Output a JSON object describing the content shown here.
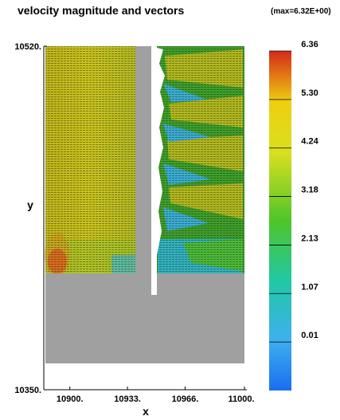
{
  "title": "velocity magnitude and vectors",
  "max_note": "(max=6.32E+00)",
  "chart_data": {
    "type": "heatmap",
    "title": "velocity magnitude and vectors",
    "annotation": "(max=6.32E+00)",
    "xlabel": "x",
    "ylabel": "y",
    "xlim": [
      10886,
      11000
    ],
    "ylim": [
      10350,
      10520
    ],
    "x_ticks": [
      {
        "value": 10900,
        "label": "10900."
      },
      {
        "value": 10933,
        "label": "10933."
      },
      {
        "value": 10966,
        "label": "10966."
      },
      {
        "value": 11000,
        "label": "11000."
      }
    ],
    "y_ticks": [
      {
        "value": 10520,
        "label": "10520."
      },
      {
        "value": 10350,
        "label": "10350."
      }
    ],
    "colorbar": {
      "ticks": [
        "6.36",
        "5.30",
        "4.24",
        "3.18",
        "2.13",
        "1.07",
        "0.01"
      ],
      "min": 0.01,
      "max": 6.36,
      "colors": [
        "#d42a1a",
        "#eecf10",
        "#d8e020",
        "#4fc52a",
        "#20c8a6",
        "#3fb0ef",
        "#1a6ef0"
      ]
    },
    "max_value": 6.32,
    "colors": {
      "solid": "#a0a0a0",
      "high": "#c8c21c",
      "mid": "#3f9f2a",
      "low": "#3ab0ee",
      "peak": "#d24a1f"
    }
  }
}
